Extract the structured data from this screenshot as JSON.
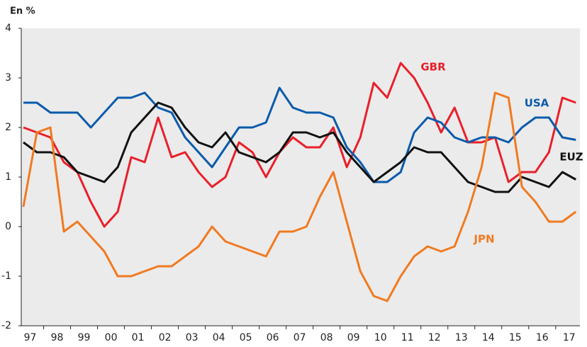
{
  "chart_data": {
    "type": "line",
    "y_label": "En %",
    "x": [
      1997.25,
      1997.75,
      1998.25,
      1998.75,
      1999.25,
      1999.75,
      2000.25,
      2000.75,
      2001.25,
      2001.75,
      2002.25,
      2002.75,
      2003.25,
      2003.75,
      2004.25,
      2004.75,
      2005.25,
      2005.75,
      2006.25,
      2006.75,
      2007.25,
      2007.75,
      2008.25,
      2008.75,
      2009.25,
      2009.75,
      2010.25,
      2010.75,
      2011.25,
      2011.75,
      2012.25,
      2012.75,
      2013.25,
      2013.75,
      2014.25,
      2014.75,
      2015.25,
      2015.75,
      2016.25,
      2016.75,
      2017.25,
      2017.75
    ],
    "series": [
      {
        "name": "GBR",
        "color": "#e8202a",
        "values": [
          2.0,
          1.9,
          1.8,
          1.3,
          1.1,
          0.5,
          0.0,
          0.3,
          1.4,
          1.3,
          2.2,
          1.4,
          1.5,
          1.1,
          0.8,
          1.0,
          1.7,
          1.5,
          1.0,
          1.5,
          1.8,
          1.6,
          1.6,
          2.0,
          1.2,
          1.8,
          2.9,
          2.6,
          3.3,
          3.0,
          2.5,
          1.9,
          2.4,
          1.7,
          1.7,
          1.8,
          0.9,
          1.1,
          1.1,
          1.5,
          2.6,
          2.5
        ]
      },
      {
        "name": "USA",
        "color": "#0a5bab",
        "values": [
          2.5,
          2.5,
          2.3,
          2.3,
          2.3,
          2.0,
          2.3,
          2.6,
          2.6,
          2.7,
          2.4,
          2.3,
          1.8,
          1.5,
          1.2,
          1.6,
          2.0,
          2.0,
          2.1,
          2.8,
          2.4,
          2.3,
          2.3,
          2.2,
          1.6,
          1.3,
          0.9,
          0.9,
          1.1,
          1.9,
          2.2,
          2.1,
          1.8,
          1.7,
          1.8,
          1.8,
          1.7,
          2.0,
          2.2,
          2.2,
          1.8,
          1.75
        ]
      },
      {
        "name": "EUZ",
        "color": "#111111",
        "values": [
          1.7,
          1.5,
          1.5,
          1.4,
          1.1,
          1.0,
          0.9,
          1.2,
          1.9,
          2.2,
          2.5,
          2.4,
          2.0,
          1.7,
          1.6,
          1.9,
          1.5,
          1.4,
          1.3,
          1.5,
          1.9,
          1.9,
          1.8,
          1.9,
          1.5,
          1.2,
          0.9,
          1.1,
          1.3,
          1.6,
          1.5,
          1.5,
          1.2,
          0.9,
          0.8,
          0.7,
          0.7,
          1.0,
          0.9,
          0.8,
          1.1,
          0.95
        ]
      },
      {
        "name": "JPN",
        "color": "#f07a22",
        "values": [
          0.4,
          1.9,
          2.0,
          -0.1,
          0.1,
          -0.2,
          -0.5,
          -1.0,
          -1.0,
          -0.9,
          -0.8,
          -0.8,
          -0.6,
          -0.4,
          0.0,
          -0.3,
          -0.4,
          -0.5,
          -0.6,
          -0.1,
          -0.1,
          0.0,
          0.6,
          1.1,
          0.1,
          -0.9,
          -1.4,
          -1.5,
          -1.0,
          -0.6,
          -0.4,
          -0.5,
          -0.4,
          0.3,
          1.2,
          2.7,
          2.6,
          0.8,
          0.5,
          0.1,
          0.1,
          0.3
        ]
      }
    ],
    "xlim": [
      1997.17,
      2017.9
    ],
    "xticks": [
      {
        "value": 1997,
        "label": "97"
      },
      {
        "value": 1998,
        "label": "98"
      },
      {
        "value": 1999,
        "label": "99"
      },
      {
        "value": 2000,
        "label": "00"
      },
      {
        "value": 2001,
        "label": "01"
      },
      {
        "value": 2002,
        "label": "02"
      },
      {
        "value": 2003,
        "label": "03"
      },
      {
        "value": 2004,
        "label": "04"
      },
      {
        "value": 2005,
        "label": "05"
      },
      {
        "value": 2006,
        "label": "06"
      },
      {
        "value": 2007,
        "label": "07"
      },
      {
        "value": 2008,
        "label": "08"
      },
      {
        "value": 2009,
        "label": "09"
      },
      {
        "value": 2010,
        "label": "10"
      },
      {
        "value": 2011,
        "label": "11"
      },
      {
        "value": 2012,
        "label": "12"
      },
      {
        "value": 2013,
        "label": "13"
      },
      {
        "value": 2014,
        "label": "14"
      },
      {
        "value": 2015,
        "label": "15"
      },
      {
        "value": 2016,
        "label": "16"
      },
      {
        "value": 2017,
        "label": "17"
      }
    ],
    "ylim": [
      -2,
      4
    ],
    "yticks": [
      -2,
      -1,
      0,
      1,
      2,
      3,
      4
    ],
    "grid": false
  }
}
